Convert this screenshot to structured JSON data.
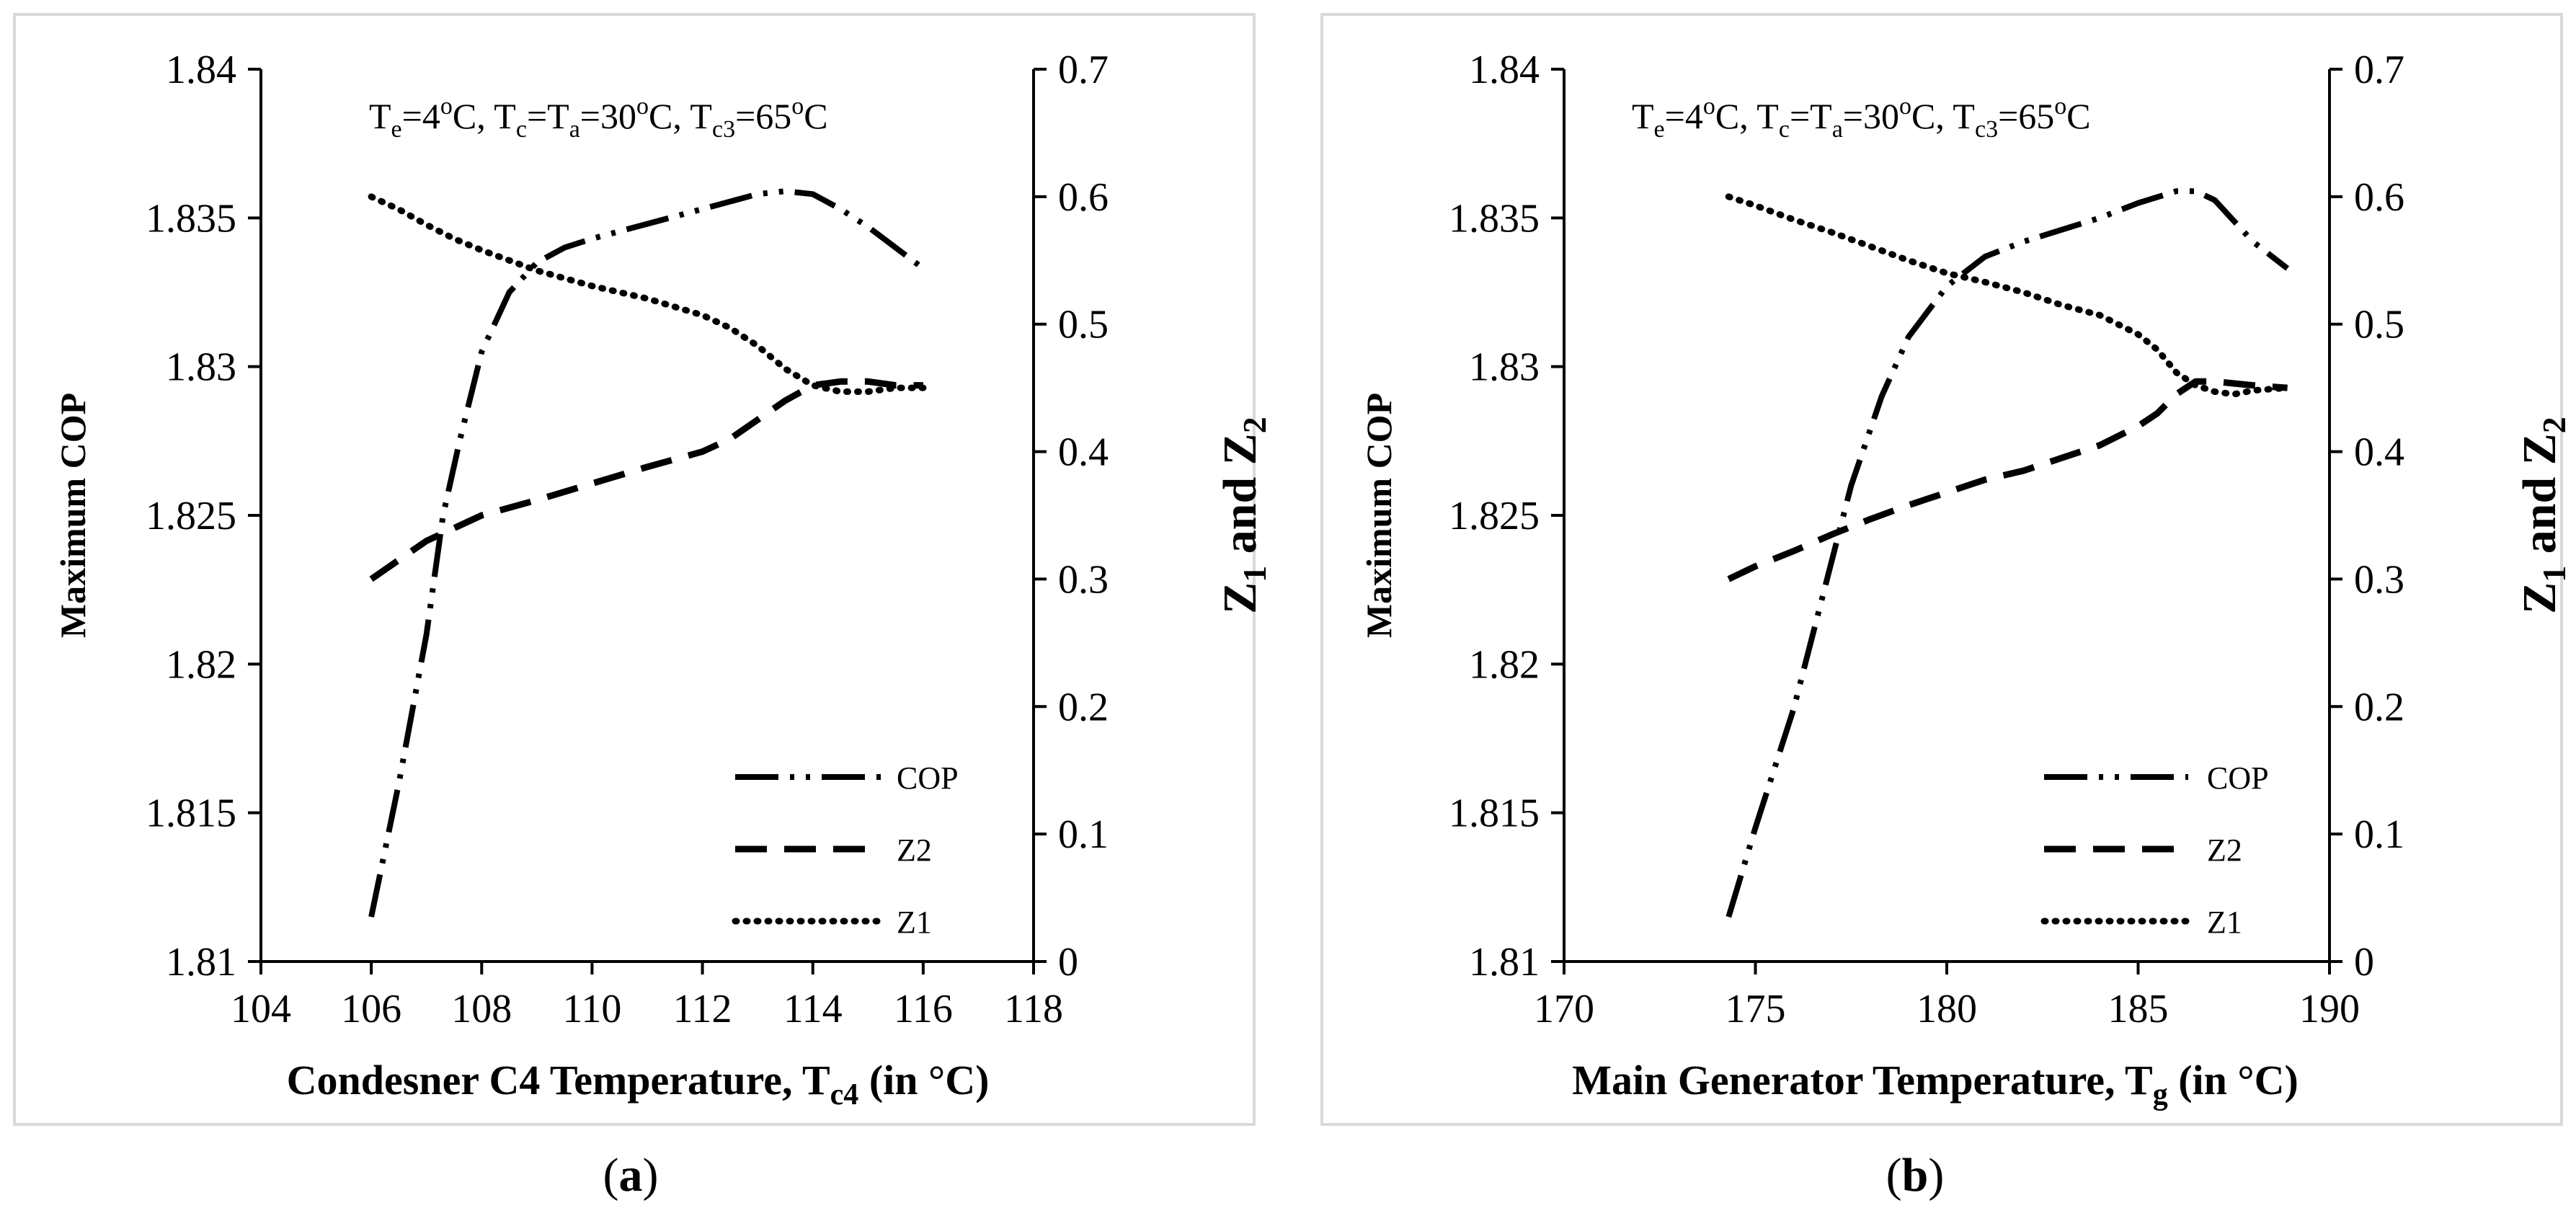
{
  "chart_data": [
    {
      "type": "line",
      "caption": {
        "open": "(",
        "letter": "a",
        "close": ")"
      },
      "xlabel": {
        "text": "Condesner C4 Temperature, T",
        "sub": "c4",
        "unit": " (in °C)"
      },
      "ylabel_left": "Maximum COP",
      "ylabel_right": {
        "Z": "Z",
        "sub1": "1",
        "and": " and ",
        "sub2": "2"
      },
      "annotation": "Te=4oC, Tc=Ta=30oC, Tc3=65oC",
      "annotation_parts": [
        {
          "t": "T"
        },
        {
          "t": "e",
          "s": "sub"
        },
        {
          "t": "=4"
        },
        {
          "t": "o",
          "s": "sup"
        },
        {
          "t": "C, T"
        },
        {
          "t": "c",
          "s": "sub"
        },
        {
          "t": "=T"
        },
        {
          "t": "a",
          "s": "sub"
        },
        {
          "t": "=30"
        },
        {
          "t": "o",
          "s": "sup"
        },
        {
          "t": "C, T"
        },
        {
          "t": "c3",
          "s": "sub"
        },
        {
          "t": "=65"
        },
        {
          "t": "o",
          "s": "sup"
        },
        {
          "t": "C"
        }
      ],
      "xlim": [
        104,
        118
      ],
      "xticks": [
        104,
        106,
        108,
        110,
        112,
        114,
        116,
        118
      ],
      "ylim_left": [
        1.81,
        1.84
      ],
      "yticks_left": [
        "1.81",
        "1.815",
        "1.82",
        "1.825",
        "1.83",
        "1.835",
        "1.84"
      ],
      "ylim_right": [
        0,
        0.7
      ],
      "yticks_right": [
        "0",
        "0.1",
        "0.2",
        "0.3",
        "0.4",
        "0.5",
        "0.6",
        "0.7"
      ],
      "legend": {
        "position": "bottom-right",
        "entries": [
          "COP",
          "Z2",
          "Z1"
        ]
      },
      "series": [
        {
          "name": "COP",
          "axis": "left",
          "style": "dash-dot-dot",
          "x": [
            106,
            106.5,
            107,
            107.3,
            107.6,
            108,
            108.5,
            109,
            109.5,
            110,
            111,
            112,
            113,
            113.5,
            114,
            114.5,
            115,
            115.5,
            116
          ],
          "y": [
            1.8115,
            1.816,
            1.821,
            1.825,
            1.8275,
            1.8305,
            1.8325,
            1.8335,
            1.834,
            1.8343,
            1.8348,
            1.8353,
            1.8358,
            1.8359,
            1.8358,
            1.8353,
            1.8347,
            1.834,
            1.8333
          ]
        },
        {
          "name": "Z2",
          "axis": "right",
          "style": "dashed",
          "x": [
            106,
            106.5,
            107,
            107.5,
            108,
            109,
            110,
            111,
            112,
            112.5,
            113,
            113.5,
            114,
            114.5,
            115,
            115.5,
            116
          ],
          "y": [
            0.3,
            0.315,
            0.33,
            0.34,
            0.35,
            0.362,
            0.375,
            0.388,
            0.4,
            0.41,
            0.425,
            0.44,
            0.452,
            0.455,
            0.455,
            0.452,
            0.452
          ]
        },
        {
          "name": "Z1",
          "axis": "right",
          "style": "dotted",
          "x": [
            106,
            106.5,
            107,
            107.5,
            108,
            109,
            110,
            111,
            112,
            112.5,
            113,
            113.5,
            114,
            114.5,
            115,
            115.5,
            116
          ],
          "y": [
            0.6,
            0.59,
            0.578,
            0.567,
            0.558,
            0.542,
            0.53,
            0.52,
            0.507,
            0.497,
            0.483,
            0.465,
            0.452,
            0.447,
            0.447,
            0.45,
            0.45
          ]
        }
      ]
    },
    {
      "type": "line",
      "caption": {
        "open": "(",
        "letter": "b",
        "close": ")"
      },
      "xlabel": {
        "text": "Main Generator Temperature, T",
        "sub": "g",
        "unit": " (in °C)"
      },
      "ylabel_left": "Maximum COP",
      "ylabel_right": {
        "Z": "Z",
        "sub1": "1",
        "and": " and ",
        "sub2": "2"
      },
      "annotation": "Te=4oC, Tc=Ta=30oC, Tc3=65oC",
      "annotation_parts": [
        {
          "t": "T"
        },
        {
          "t": "e",
          "s": "sub"
        },
        {
          "t": "=4"
        },
        {
          "t": "o",
          "s": "sup"
        },
        {
          "t": "C, T"
        },
        {
          "t": "c",
          "s": "sub"
        },
        {
          "t": "=T"
        },
        {
          "t": "a",
          "s": "sub"
        },
        {
          "t": "=30"
        },
        {
          "t": "o",
          "s": "sup"
        },
        {
          "t": "C, T"
        },
        {
          "t": "c3",
          "s": "sub"
        },
        {
          "t": "=65"
        },
        {
          "t": "o",
          "s": "sup"
        },
        {
          "t": "C"
        }
      ],
      "xlim": [
        170,
        190
      ],
      "xticks": [
        170,
        175,
        180,
        185,
        190
      ],
      "ylim_left": [
        1.81,
        1.84
      ],
      "yticks_left": [
        "1.81",
        "1.815",
        "1.82",
        "1.825",
        "1.83",
        "1.835",
        "1.84"
      ],
      "ylim_right": [
        0,
        0.7
      ],
      "yticks_right": [
        "0",
        "0.1",
        "0.2",
        "0.3",
        "0.4",
        "0.5",
        "0.6",
        "0.7"
      ],
      "legend": {
        "position": "bottom-right",
        "entries": [
          "COP",
          "Z2",
          "Z1"
        ]
      },
      "series": [
        {
          "name": "COP",
          "axis": "left",
          "style": "dash-dot-dot",
          "x": [
            174.3,
            175,
            176,
            176.8,
            177.5,
            178.3,
            179,
            180,
            181,
            182,
            183,
            184,
            185,
            186,
            186.5,
            187,
            187.5,
            188,
            188.9
          ],
          "y": [
            1.8115,
            1.8145,
            1.8185,
            1.8225,
            1.826,
            1.829,
            1.831,
            1.8327,
            1.8337,
            1.8342,
            1.8346,
            1.835,
            1.8355,
            1.8359,
            1.8359,
            1.8356,
            1.8349,
            1.8342,
            1.8333
          ]
        },
        {
          "name": "Z2",
          "axis": "right",
          "style": "dashed",
          "x": [
            174.3,
            175,
            176,
            177,
            178,
            179,
            180,
            181,
            182,
            183,
            184,
            185,
            185.5,
            186,
            186.5,
            187,
            188,
            188.9
          ],
          "y": [
            0.3,
            0.31,
            0.322,
            0.335,
            0.347,
            0.358,
            0.368,
            0.378,
            0.385,
            0.395,
            0.405,
            0.42,
            0.43,
            0.445,
            0.455,
            0.455,
            0.452,
            0.45
          ]
        },
        {
          "name": "Z1",
          "axis": "right",
          "style": "dotted",
          "x": [
            174.3,
            175,
            176,
            177,
            178,
            179,
            180,
            181,
            182,
            183,
            184,
            185,
            185.5,
            186,
            186.5,
            187,
            187.5,
            188,
            188.9
          ],
          "y": [
            0.6,
            0.593,
            0.582,
            0.572,
            0.561,
            0.55,
            0.54,
            0.533,
            0.525,
            0.515,
            0.507,
            0.492,
            0.48,
            0.462,
            0.452,
            0.447,
            0.445,
            0.448,
            0.45
          ]
        }
      ]
    }
  ]
}
